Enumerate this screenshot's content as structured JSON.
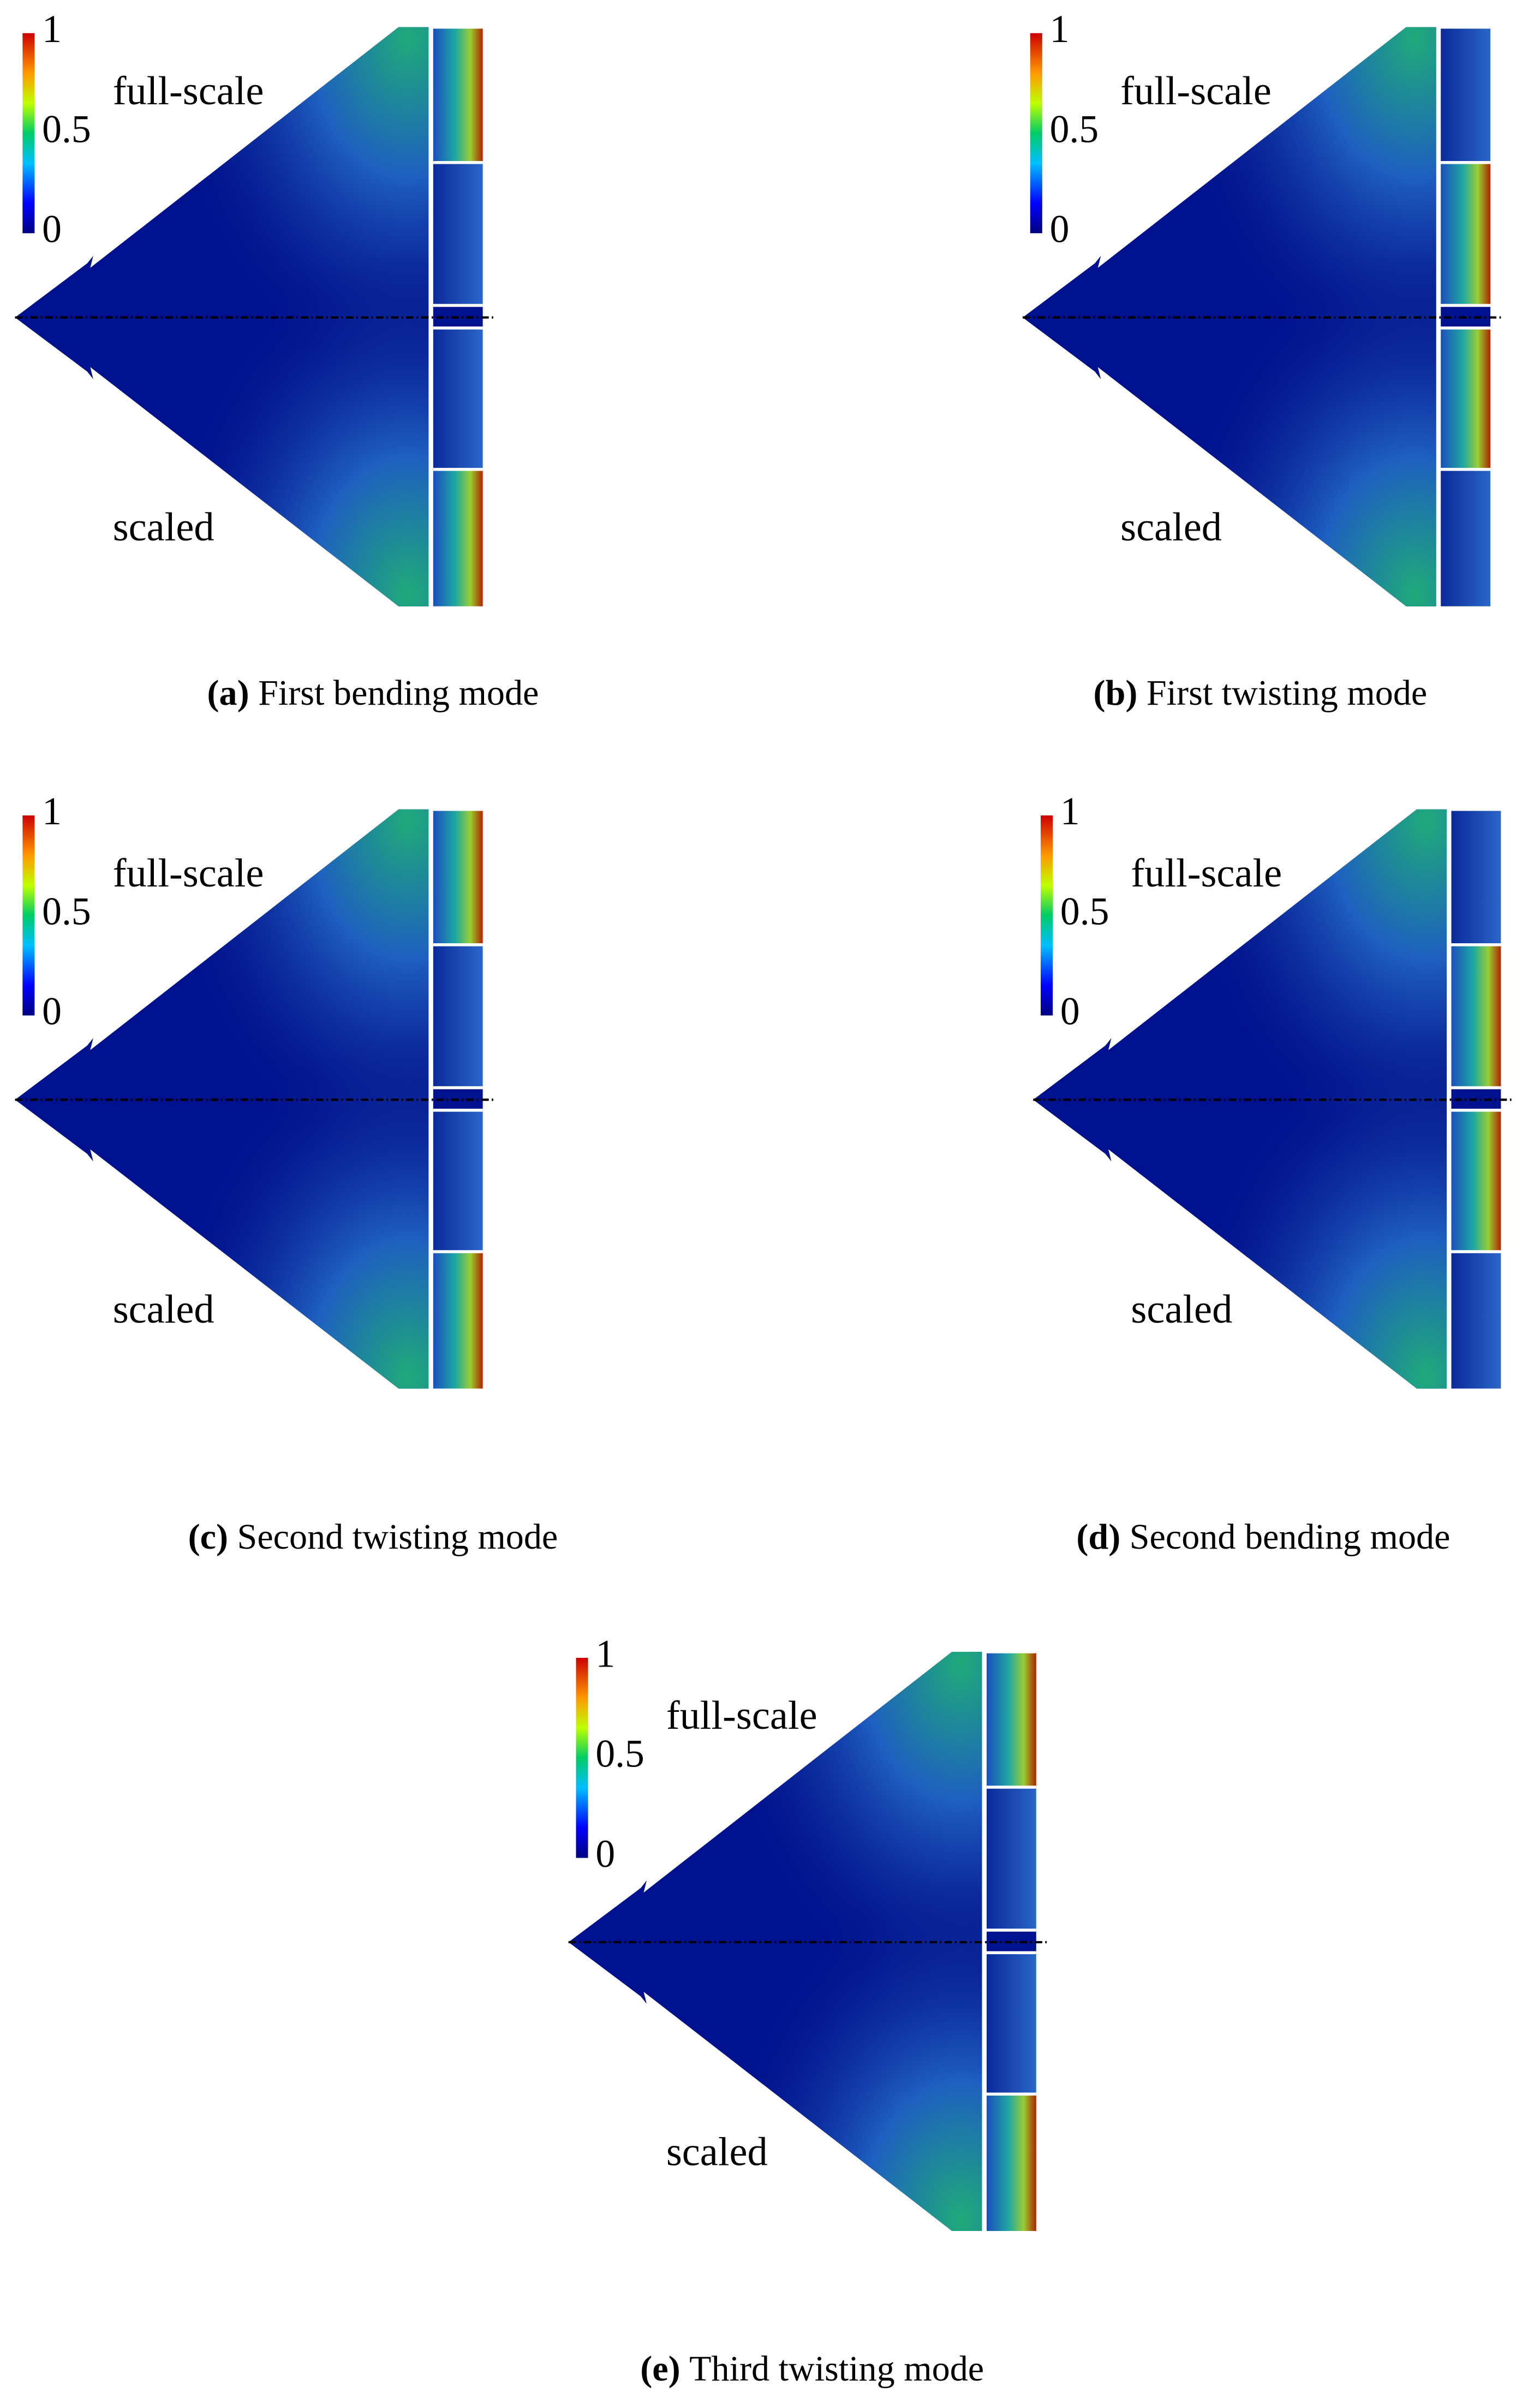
{
  "panels": [
    {
      "tag": "(a)",
      "caption": "First bending mode",
      "colorbar_ticks": [
        1,
        0.5,
        0
      ],
      "top_label": "full-scale",
      "bottom_label": "scaled"
    },
    {
      "tag": "(b)",
      "caption": "First twisting mode",
      "colorbar_ticks": [
        1,
        0.5,
        0
      ],
      "top_label": "full-scale",
      "bottom_label": "scaled"
    },
    {
      "tag": "(c)",
      "caption": "Second twisting mode",
      "colorbar_ticks": [
        1,
        0.5,
        0
      ],
      "top_label": "full-scale",
      "bottom_label": "scaled"
    },
    {
      "tag": "(d)",
      "caption": "Second bending mode",
      "colorbar_ticks": [
        1,
        0.5,
        0
      ],
      "top_label": "full-scale",
      "bottom_label": "scaled"
    },
    {
      "tag": "(e)",
      "caption": "Third twisting mode",
      "colorbar_ticks": [
        1,
        0.5,
        0
      ],
      "top_label": "full-scale",
      "bottom_label": "scaled"
    }
  ]
}
